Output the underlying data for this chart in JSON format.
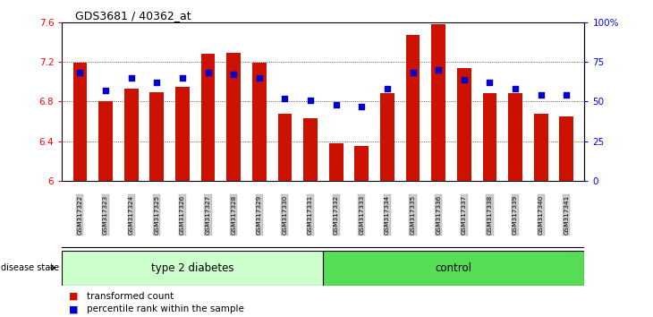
{
  "title": "GDS3681 / 40362_at",
  "samples": [
    "GSM317322",
    "GSM317323",
    "GSM317324",
    "GSM317325",
    "GSM317326",
    "GSM317327",
    "GSM317328",
    "GSM317329",
    "GSM317330",
    "GSM317331",
    "GSM317332",
    "GSM317333",
    "GSM317334",
    "GSM317335",
    "GSM317336",
    "GSM317337",
    "GSM317338",
    "GSM317339",
    "GSM317340",
    "GSM317341"
  ],
  "bar_values": [
    7.19,
    6.8,
    6.93,
    6.89,
    6.95,
    7.28,
    7.29,
    7.19,
    6.68,
    6.63,
    6.38,
    6.35,
    6.88,
    7.47,
    7.58,
    7.14,
    6.88,
    6.88,
    6.68,
    6.65
  ],
  "percentile_values": [
    68,
    57,
    65,
    62,
    65,
    68,
    67,
    65,
    52,
    51,
    48,
    47,
    58,
    68,
    70,
    64,
    62,
    58,
    54,
    54
  ],
  "bar_color": "#CC1100",
  "dot_color": "#0000CC",
  "ymin": 6.0,
  "ymax": 7.6,
  "yticks": [
    6.0,
    6.4,
    6.8,
    7.2,
    7.6
  ],
  "ytick_labels": [
    "6",
    "6.4",
    "6.8",
    "7.2",
    "7.6"
  ],
  "right_yticks": [
    0,
    25,
    50,
    75,
    100
  ],
  "right_ytick_labels": [
    "0",
    "25",
    "50",
    "75",
    "100%"
  ],
  "type2_diabetes_count": 10,
  "control_count": 10,
  "group_label_diabetes": "type 2 diabetes",
  "group_label_control": "control",
  "disease_state_label": "disease state",
  "legend_bar_label": "transformed count",
  "legend_dot_label": "percentile rank within the sample",
  "bg_color_diabetes": "#CCFFCC",
  "bg_color_control": "#55DD55",
  "tick_label_bg": "#CCCCCC",
  "bar_width": 0.55
}
